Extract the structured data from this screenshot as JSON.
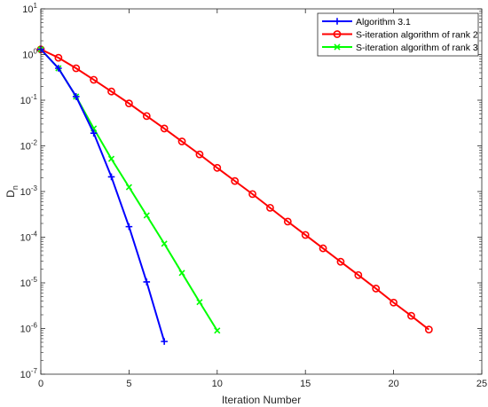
{
  "chart_data": {
    "type": "line",
    "xlabel": "Iteration Number",
    "ylabel": "D",
    "ylabel_sub": "n",
    "xlim": [
      0,
      25
    ],
    "ylim": [
      1e-07,
      10
    ],
    "yscale": "log",
    "grid": false,
    "legend_position": "top-right",
    "x_ticks": [
      {
        "value": 0,
        "label": "0"
      },
      {
        "value": 5,
        "label": "5"
      },
      {
        "value": 10,
        "label": "10"
      },
      {
        "value": 15,
        "label": "15"
      },
      {
        "value": 20,
        "label": "20"
      },
      {
        "value": 25,
        "label": "25"
      }
    ],
    "y_ticks": [
      {
        "exp": -7,
        "base": "10",
        "power": "-7"
      },
      {
        "exp": -6,
        "base": "10",
        "power": "-6"
      },
      {
        "exp": -5,
        "base": "10",
        "power": "-5"
      },
      {
        "exp": -4,
        "base": "10",
        "power": "-4"
      },
      {
        "exp": -3,
        "base": "10",
        "power": "-3"
      },
      {
        "exp": -2,
        "base": "10",
        "power": "-2"
      },
      {
        "exp": -1,
        "base": "10",
        "power": "-1"
      },
      {
        "exp": 0,
        "base": "10",
        "power": "0"
      },
      {
        "exp": 1,
        "base": "10",
        "power": "1"
      }
    ],
    "series": [
      {
        "name": "Algorithm 3.1",
        "color": "#0000ff",
        "marker": "plus",
        "x": [
          0,
          1,
          2,
          3,
          4,
          5,
          6,
          7
        ],
        "y": [
          1.3,
          0.5,
          0.12,
          0.019,
          0.0021,
          0.00017,
          1.05e-05,
          5.2e-07
        ]
      },
      {
        "name": "S-iteration algorithm of rank 2",
        "color": "#ff0000",
        "marker": "circle",
        "x": [
          0,
          1,
          2,
          3,
          4,
          5,
          6,
          7,
          8,
          9,
          10,
          11,
          12,
          13,
          14,
          15,
          16,
          17,
          18,
          19,
          20,
          21,
          22
        ],
        "y": [
          1.3,
          0.85,
          0.5,
          0.28,
          0.155,
          0.085,
          0.045,
          0.024,
          0.0125,
          0.0065,
          0.0033,
          0.0017,
          0.00088,
          0.00044,
          0.00022,
          0.000112,
          5.7e-05,
          2.9e-05,
          1.48e-05,
          7.5e-06,
          3.7e-06,
          1.9e-06,
          9.5e-07
        ]
      },
      {
        "name": "S-iteration algorithm of rank 3",
        "color": "#00ff00",
        "marker": "x",
        "x": [
          0,
          1,
          2,
          3,
          4,
          5,
          6,
          7,
          8,
          9,
          10
        ],
        "y": [
          1.3,
          0.5,
          0.12,
          0.024,
          0.0052,
          0.00125,
          0.0003,
          7.2e-05,
          1.65e-05,
          3.8e-06,
          9e-07
        ]
      }
    ]
  }
}
